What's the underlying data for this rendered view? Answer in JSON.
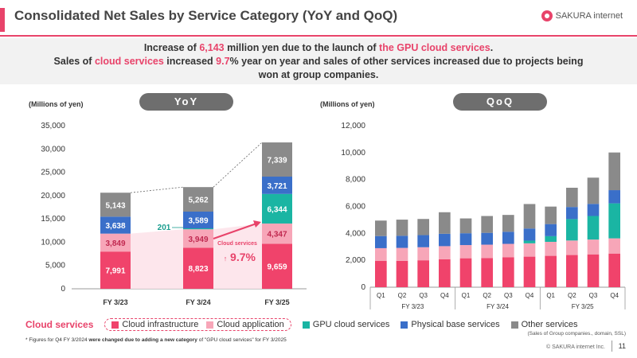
{
  "title": "Consolidated Net Sales by Service Category (YoY and QoQ)",
  "logo_text": "SAKURA internet",
  "banner": {
    "line1_pre": "Increase of ",
    "line1_num": "6,143",
    "line1_mid": " million yen due to the launch of ",
    "line1_hl": "the GPU cloud services",
    "line1_post": ".",
    "line2_pre": "Sales of ",
    "line2_hl": "cloud services",
    "line2_mid": " increased ",
    "line2_num": "9.7",
    "line2_post": "% year on year and sales of other services increased due to projects being",
    "line3": "won at group companies."
  },
  "yoy_label": "YoY",
  "qoq_label": "QoQ",
  "unit_left": "(Millions of yen)",
  "unit_right": "(Millions of yen)",
  "legend": {
    "cloud_title": "Cloud services",
    "items": [
      {
        "label": "Cloud infrastructure",
        "color": "#f0436b"
      },
      {
        "label": "Cloud application",
        "color": "#f7a6b8"
      },
      {
        "label": "GPU cloud services",
        "color": "#1ab5a3"
      },
      {
        "label": "Physical base services",
        "color": "#3a6fc9"
      },
      {
        "label": "Other services",
        "color": "#8a8a8a"
      }
    ]
  },
  "group_note": "(Sales of Group companies., domain, SSL)",
  "footnote_pre": "* Figures for Q4 FY 3/2024 ",
  "footnote_bold": "were changed due to adding a new category",
  "footnote_post": " of \"GPU cloud services\" for FY 3/2025",
  "copyright": "© SAKURA internet Inc.",
  "page_number": "11",
  "chart_data": [
    {
      "type": "bar",
      "stacked": true,
      "categories": [
        "FY 3/23",
        "FY 3/24",
        "FY 3/25"
      ],
      "ylim": [
        0,
        35000
      ],
      "yticks": [
        "0",
        "5,000",
        "10,000",
        "15,000",
        "20,000",
        "25,000",
        "30,000",
        "35,000"
      ],
      "series": [
        {
          "name": "Cloud infrastructure",
          "color": "#f0436b",
          "values": [
            7991,
            8823,
            9659
          ],
          "labels": [
            "7,991",
            "8,823",
            "9,659"
          ]
        },
        {
          "name": "Cloud application",
          "color": "#f7a6b8",
          "values": [
            3849,
            3949,
            4347
          ],
          "labels": [
            "3,849",
            "3,949",
            "4,347"
          ]
        },
        {
          "name": "GPU cloud services",
          "color": "#1ab5a3",
          "values": [
            0,
            201,
            6344
          ],
          "labels": [
            "",
            "",
            "6,344"
          ]
        },
        {
          "name": "Physical base services",
          "color": "#3a6fc9",
          "values": [
            3638,
            3589,
            3721
          ],
          "labels": [
            "3,638",
            "3,589",
            "3,721"
          ]
        },
        {
          "name": "Other services",
          "color": "#8a8a8a",
          "values": [
            5143,
            5262,
            7339
          ],
          "labels": [
            "5,143",
            "5,262",
            "7,339"
          ]
        }
      ],
      "annotations": {
        "gpu_q4": "201",
        "cloud_label": "Cloud services",
        "growth": "9.7%",
        "growth_arrow": "↑"
      }
    },
    {
      "type": "bar",
      "stacked": true,
      "categories": [
        "Q1",
        "Q2",
        "Q3",
        "Q4",
        "Q1",
        "Q2",
        "Q3",
        "Q4",
        "Q1",
        "Q2",
        "Q3",
        "Q4"
      ],
      "groups": [
        "FY 3/23",
        "FY 3/24",
        "FY 3/25"
      ],
      "ylim": [
        0,
        12000
      ],
      "yticks": [
        "0",
        "2,000",
        "4,000",
        "6,000",
        "8,000",
        "10,000",
        "12,000"
      ],
      "series": [
        {
          "name": "Cloud infrastructure",
          "color": "#f0436b",
          "values": [
            1950,
            1960,
            2000,
            2080,
            2150,
            2170,
            2230,
            2270,
            2330,
            2390,
            2440,
            2500
          ]
        },
        {
          "name": "Cloud application",
          "color": "#f7a6b8",
          "values": [
            950,
            960,
            970,
            970,
            980,
            990,
            990,
            990,
            1040,
            1080,
            1100,
            1130
          ]
        },
        {
          "name": "GPU cloud services",
          "color": "#1ab5a3",
          "values": [
            0,
            0,
            0,
            0,
            0,
            0,
            0,
            200,
            420,
            1590,
            1750,
            2600
          ]
        },
        {
          "name": "Physical base services",
          "color": "#3a6fc9",
          "values": [
            900,
            900,
            900,
            920,
            880,
            880,
            900,
            900,
            900,
            900,
            900,
            980
          ]
        },
        {
          "name": "Other services",
          "color": "#8a8a8a",
          "values": [
            1150,
            1200,
            1200,
            1600,
            1100,
            1250,
            1250,
            1820,
            1300,
            1430,
            1950,
            2800
          ]
        }
      ]
    }
  ]
}
